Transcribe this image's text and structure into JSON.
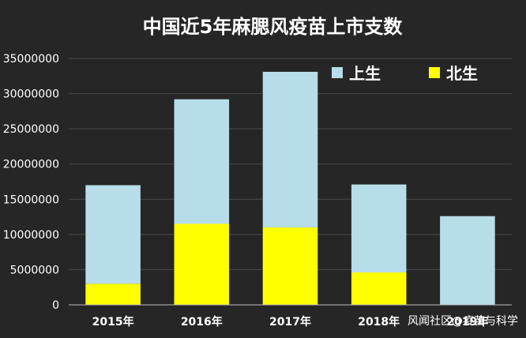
{
  "chart_data": {
    "type": "bar",
    "stacked": true,
    "title": "中国近5年麻腮风疫苗上市支数",
    "categories": [
      "2015年",
      "2016年",
      "2017年",
      "2018年",
      "2019年"
    ],
    "series": [
      {
        "name": "北生",
        "color": "#ffff00",
        "values": [
          3000000,
          11500000,
          11000000,
          4600000,
          0
        ]
      },
      {
        "name": "上生",
        "color": "#b7dde8",
        "values": [
          14000000,
          17700000,
          22100000,
          12500000,
          12600000
        ]
      }
    ],
    "ylim": [
      0,
      35000000
    ],
    "yticks": [
      0,
      5000000,
      10000000,
      15000000,
      20000000,
      25000000,
      30000000,
      35000000
    ],
    "grid": true,
    "legend": "top-right",
    "xlabel": "",
    "ylabel": ""
  },
  "watermark": "风闻社区@疫苗与科学"
}
